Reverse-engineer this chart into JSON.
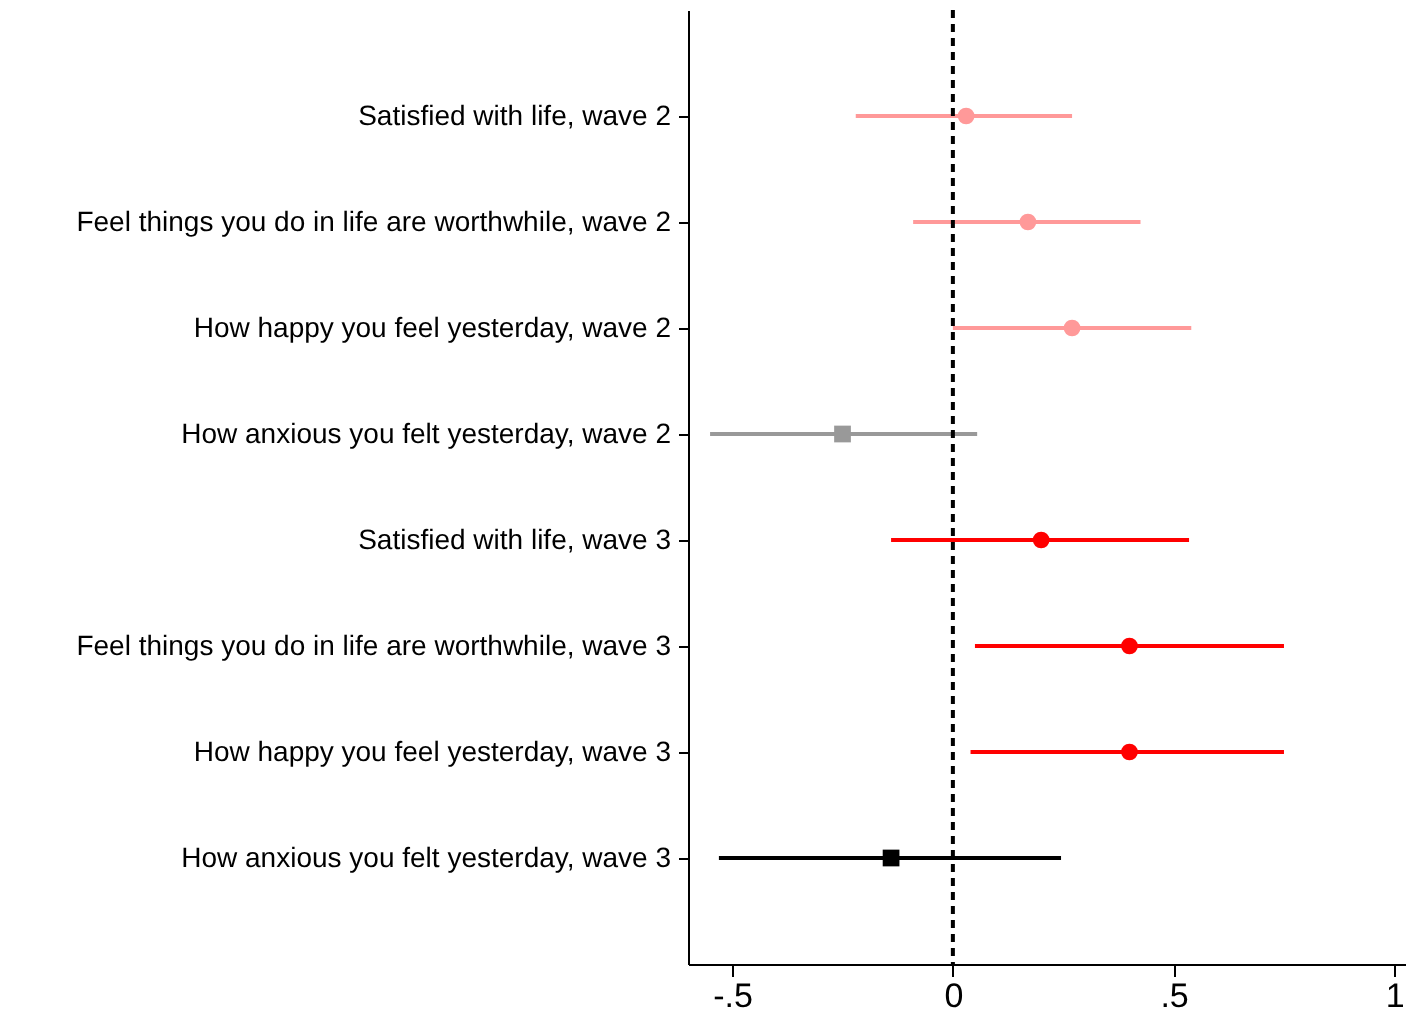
{
  "chart_data": {
    "type": "scatter",
    "orientation": "horizontal",
    "categories": [
      "Satisfied with life, wave 2",
      "Feel things you do in life are worthwhile, wave 2",
      "How happy you feel yesterday, wave 2",
      "How anxious you felt yesterday, wave 2",
      "Satisfied with life, wave 3",
      "Feel things you do in life are worthwhile, wave 3",
      "How happy you feel yesterday, wave 3",
      "How anxious you felt yesterday, wave 3"
    ],
    "series": [
      {
        "color": "#ff9999",
        "marker": "circle",
        "values": [
          0.03,
          0.17,
          0.27,
          null,
          null,
          null,
          null,
          null
        ],
        "errors": [
          [
            -0.22,
            0.27
          ],
          [
            -0.09,
            0.425
          ],
          [
            0.0,
            0.54
          ],
          null,
          null,
          null,
          null,
          null
        ]
      },
      {
        "color": "#999999",
        "marker": "square",
        "values": [
          null,
          null,
          null,
          -0.25,
          null,
          null,
          null,
          null
        ],
        "errors": [
          null,
          null,
          null,
          [
            -0.55,
            0.055
          ],
          null,
          null,
          null,
          null
        ]
      },
      {
        "color": "#ff0000",
        "marker": "circle",
        "values": [
          null,
          null,
          null,
          null,
          0.2,
          0.4,
          0.4,
          null
        ],
        "errors": [
          null,
          null,
          null,
          null,
          [
            -0.14,
            0.535
          ],
          [
            0.05,
            0.75
          ],
          [
            0.04,
            0.75
          ],
          null
        ]
      },
      {
        "color": "#000000",
        "marker": "square",
        "values": [
          null,
          null,
          null,
          null,
          null,
          null,
          null,
          -0.14
        ],
        "errors": [
          null,
          null,
          null,
          null,
          null,
          null,
          null,
          [
            -0.53,
            0.245
          ]
        ]
      }
    ],
    "xlim": [
      -0.6,
      1.04
    ],
    "xticks": [
      {
        "value": -0.5,
        "label": "-.5"
      },
      0,
      {
        "value": 0.5,
        "label": ".5"
      },
      1
    ],
    "ref_lines": [
      {
        "axis": "x",
        "value": 0,
        "color": "#000000",
        "line_style": "dashed"
      }
    ],
    "grid": false
  }
}
